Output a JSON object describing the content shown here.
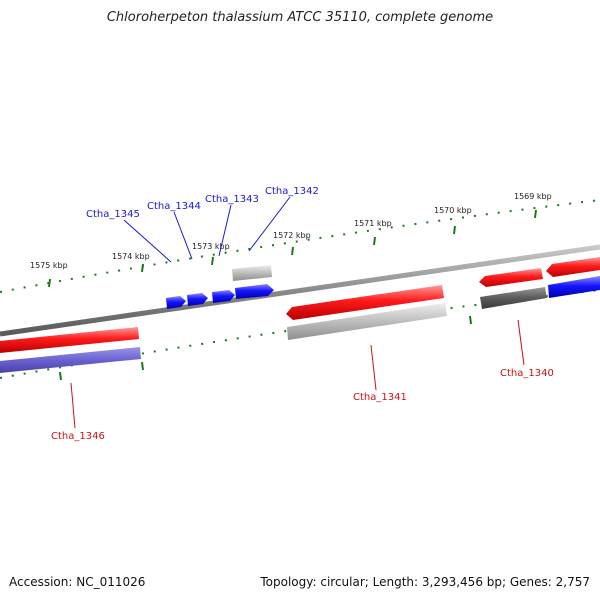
{
  "title": "Chloroherpeton thalassium ATCC 35110, complete genome",
  "footer": {
    "accession": "Accession: NC_011026",
    "summary": "Topology: circular; Length: 3,293,456 bp; Genes: 2,757"
  },
  "ticks": [
    {
      "label": "1575 kbp"
    },
    {
      "label": "1574 kbp"
    },
    {
      "label": "1573 kbp"
    },
    {
      "label": "1572 kbp"
    },
    {
      "label": "1571 kbp"
    },
    {
      "label": "1570 kbp"
    },
    {
      "label": "1569 kbp"
    }
  ],
  "genes": [
    {
      "label": "Ctha_1345",
      "strand": "forward"
    },
    {
      "label": "Ctha_1344",
      "strand": "forward"
    },
    {
      "label": "Ctha_1343",
      "strand": "forward"
    },
    {
      "label": "Ctha_1342",
      "strand": "forward"
    },
    {
      "label": "Ctha_1341",
      "strand": "reverse"
    },
    {
      "label": "Ctha_1340",
      "strand": "reverse"
    },
    {
      "label": "Ctha_1346",
      "strand": "reverse"
    }
  ],
  "colors": {
    "forward_gene": "#1010e0",
    "reverse_gene": "#e01010",
    "rna_gene": "#b8b8b8",
    "backbone": "#888888",
    "tick": "#1a7a1a"
  }
}
